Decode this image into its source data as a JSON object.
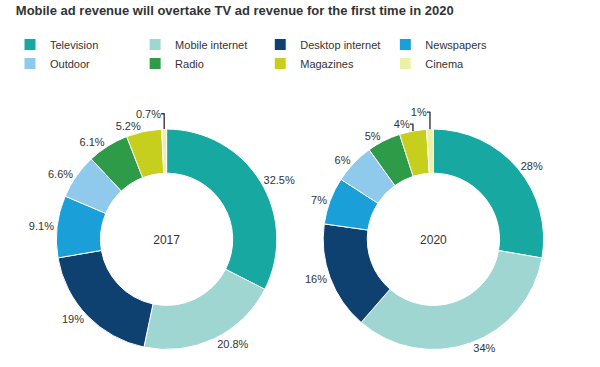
{
  "chart_data": {
    "type": "pie",
    "title": "Mobile ad revenue will overtake TV ad revenue for the first time in 2020",
    "categories": [
      "Television",
      "Mobile internet",
      "Desktop internet",
      "Newspapers",
      "Outdoor",
      "Radio",
      "Magazines",
      "Cinema"
    ],
    "colors": [
      "#17a8a1",
      "#9fd6d1",
      "#0e4170",
      "#1a9fd9",
      "#8fc9ec",
      "#2e9b48",
      "#c6cf1d",
      "#eef0a8"
    ],
    "data_labels": true,
    "legend": "top left",
    "series": [
      {
        "name": "2017",
        "values": [
          32.5,
          20.8,
          19,
          9.1,
          6.6,
          6.1,
          5.2,
          0.7
        ],
        "value_labels": [
          "32.5%",
          "20.8%",
          "19%",
          "9.1%",
          "6.6%",
          "6.1%",
          "5.2%",
          "0.7%"
        ]
      },
      {
        "name": "2020",
        "values": [
          28,
          34,
          16,
          7,
          6,
          5,
          4,
          1
        ],
        "value_labels": [
          "28%",
          "34%",
          "16%",
          "7%",
          "6%",
          "5%",
          "4%",
          "1%"
        ]
      }
    ]
  }
}
